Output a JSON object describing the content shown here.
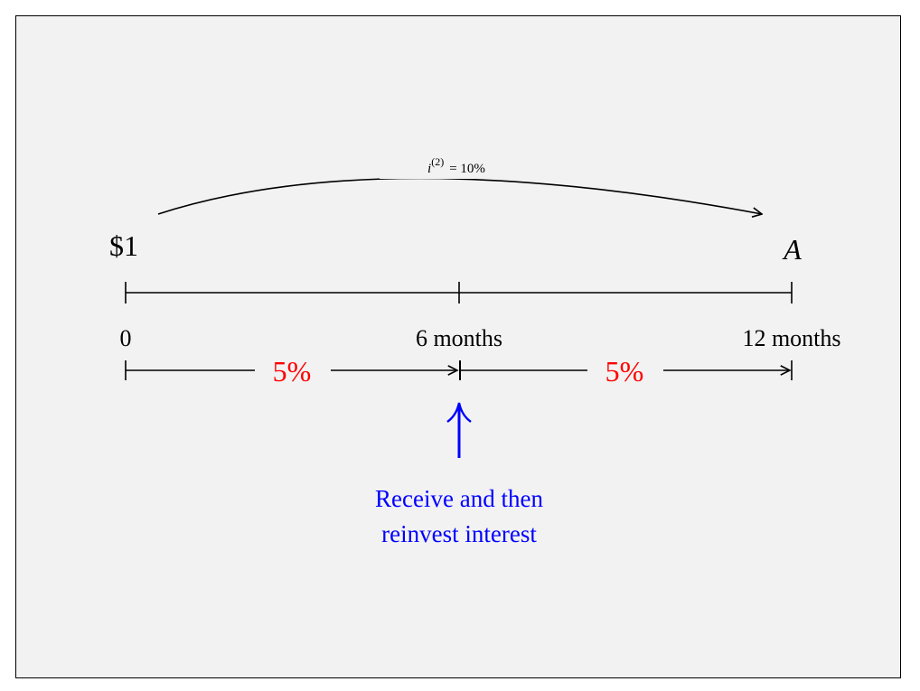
{
  "diagram": {
    "rate_label": "i(2) = 10%",
    "rate_symbol": "i",
    "rate_superscript": "(2)",
    "rate_value": "= 10%",
    "start_value": "$1",
    "end_value": "A",
    "ticks": [
      "0",
      "6 months",
      "12 months"
    ],
    "period_rates": [
      "5%",
      "5%"
    ],
    "callout_line1": "Receive and then",
    "callout_line2": "reinvest interest",
    "colors": {
      "rate": "#ff0000",
      "callout": "#0000ff",
      "ink": "#000000",
      "background": "#f2f2f2"
    }
  }
}
